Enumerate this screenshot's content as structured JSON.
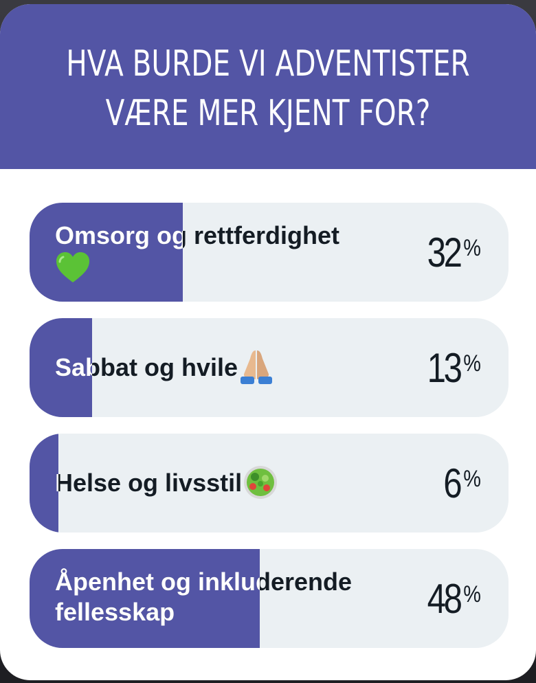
{
  "poll": {
    "question": "HVA BURDE VI ADVENTISTER\nVÆRE MER KJENT FOR?",
    "accent_color": "#5355a5",
    "track_color": "#ebf0f3",
    "options": [
      {
        "label": "Omsorg og rettferdighet",
        "emoji": "green-heart-icon",
        "percent_value": "32",
        "percent_sign": "%",
        "share": 0.32
      },
      {
        "label": "Sabbat og hvile",
        "emoji": "praying-hands-icon",
        "percent_value": "13",
        "percent_sign": "%",
        "share": 0.13
      },
      {
        "label": "Helse og livsstil",
        "emoji": "salad-bowl-icon",
        "percent_value": "6",
        "percent_sign": "%",
        "share": 0.06
      },
      {
        "label": "Åpenhet og inkluderende fellesskap",
        "emoji": "",
        "percent_value": "48",
        "percent_sign": "%",
        "share": 0.48
      }
    ]
  }
}
